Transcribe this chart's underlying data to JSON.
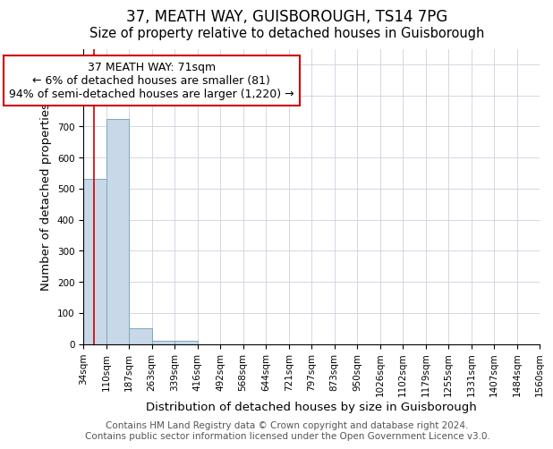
{
  "title": "37, MEATH WAY, GUISBOROUGH, TS14 7PG",
  "subtitle": "Size of property relative to detached houses in Guisborough",
  "xlabel": "Distribution of detached houses by size in Guisborough",
  "ylabel": "Number of detached properties",
  "footnote1": "Contains HM Land Registry data © Crown copyright and database right 2024.",
  "footnote2": "Contains public sector information licensed under the Open Government Licence v3.0.",
  "annotation_line1": "37 MEATH WAY: 71sqm",
  "annotation_line2": "← 6% of detached houses are smaller (81)",
  "annotation_line3": "94% of semi-detached houses are larger (1,220) →",
  "property_size": 71,
  "bin_edges": [
    34,
    110,
    187,
    263,
    339,
    416,
    492,
    568,
    644,
    721,
    797,
    873,
    950,
    1026,
    1102,
    1179,
    1255,
    1331,
    1407,
    1484,
    1560
  ],
  "bin_labels": [
    "34sqm",
    "110sqm",
    "187sqm",
    "263sqm",
    "339sqm",
    "416sqm",
    "492sqm",
    "568sqm",
    "644sqm",
    "721sqm",
    "797sqm",
    "873sqm",
    "950sqm",
    "1026sqm",
    "1102sqm",
    "1179sqm",
    "1255sqm",
    "1331sqm",
    "1407sqm",
    "1484sqm",
    "1560sqm"
  ],
  "bar_heights": [
    530,
    725,
    50,
    10,
    10,
    0,
    0,
    0,
    0,
    0,
    0,
    0,
    0,
    0,
    0,
    0,
    0,
    0,
    0,
    0
  ],
  "bar_color": "#c8d8e8",
  "bar_edge_color": "#7aaabb",
  "grid_color": "#d0d0e0",
  "ylim": [
    0,
    950
  ],
  "yticks": [
    0,
    100,
    200,
    300,
    400,
    500,
    600,
    700,
    800,
    900
  ],
  "red_line_color": "#cc0000",
  "title_fontsize": 12,
  "subtitle_fontsize": 10.5,
  "axis_label_fontsize": 9.5,
  "tick_fontsize": 7.5,
  "footnote_fontsize": 7.5,
  "annotation_fontsize": 9
}
